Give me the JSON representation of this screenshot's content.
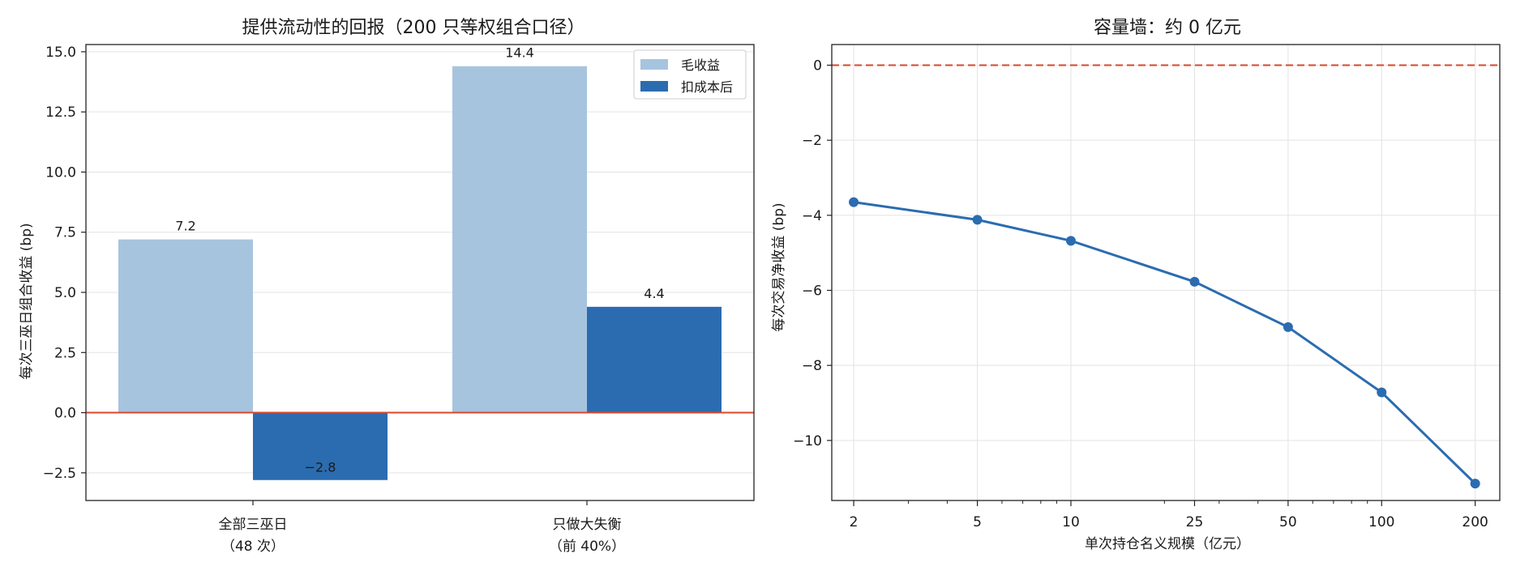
{
  "colors": {
    "gross": "#a7c4df",
    "net": "#2b6cb0",
    "zero_line": "#d9472b",
    "line": "#2b6cb0"
  },
  "chart_data": [
    {
      "type": "bar",
      "title": "提供流动性的回报（200 只等权组合口径）",
      "xlabel": "",
      "ylabel": "每次三巫日组合收益 (bp)",
      "categories": [
        {
          "line1": "全部三巫日",
          "line2": "（48 次）"
        },
        {
          "line1": "只做大失衡",
          "line2": "（前 40%）"
        }
      ],
      "series": [
        {
          "name": "毛收益",
          "values": [
            7.2,
            14.4
          ],
          "labels": [
            "7.2",
            "14.4"
          ]
        },
        {
          "name": "扣成本后",
          "values": [
            -2.8,
            4.4
          ],
          "labels": [
            "−2.8",
            "4.4"
          ]
        }
      ],
      "ylim": [
        -3.65,
        15.3
      ],
      "yticks": [
        {
          "v": -2.5,
          "label": "−2.5"
        },
        {
          "v": 0,
          "label": "0.0"
        },
        {
          "v": 2.5,
          "label": "2.5"
        },
        {
          "v": 5,
          "label": "5.0"
        },
        {
          "v": 7.5,
          "label": "7.5"
        },
        {
          "v": 10,
          "label": "10.0"
        },
        {
          "v": 12.5,
          "label": "12.5"
        },
        {
          "v": 15,
          "label": "15.0"
        }
      ],
      "reference_line": 0,
      "grid": "y",
      "legend": "top-right"
    },
    {
      "type": "line",
      "title": "容量墙：约 0 亿元",
      "xlabel": "单次持仓名义规模（亿元）",
      "ylabel": "每次交易净收益 (bp)",
      "x_scale": "log",
      "x": [
        2,
        5,
        10,
        25,
        50,
        100,
        200
      ],
      "xtick_labels": [
        "2",
        "5",
        "10",
        "25",
        "50",
        "100",
        "200"
      ],
      "y": [
        -3.65,
        -4.12,
        -4.68,
        -5.77,
        -6.98,
        -8.72,
        -11.15
      ],
      "xlim": [
        1.7,
        240
      ],
      "ylim": [
        -11.6,
        0.55
      ],
      "yticks": [
        {
          "v": -10,
          "label": "−10"
        },
        {
          "v": -8,
          "label": "−8"
        },
        {
          "v": -6,
          "label": "−6"
        },
        {
          "v": -4,
          "label": "−4"
        },
        {
          "v": -2,
          "label": "−2"
        },
        {
          "v": 0,
          "label": "0"
        }
      ],
      "reference_line": 0,
      "grid": "both"
    }
  ]
}
